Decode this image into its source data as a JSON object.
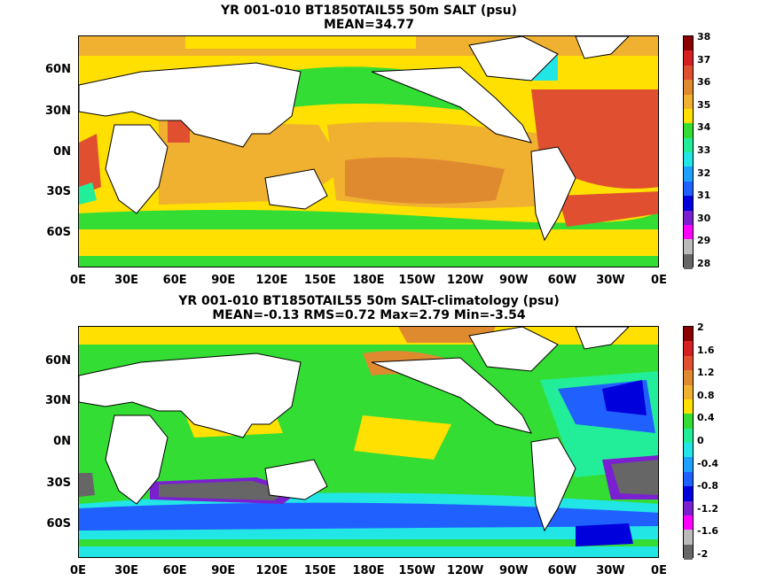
{
  "panels": [
    {
      "title_line1": "YR 001-010 BT1850TAIL55 50m SALT (psu)",
      "title_line2": "MEAN=34.77",
      "colorbar_labels": [
        "38",
        "37",
        "36",
        "35",
        "34",
        "33",
        "32",
        "31",
        "30",
        "29",
        "28"
      ],
      "colorbar_colors": [
        "#8b0000",
        "#d42020",
        "#e05030",
        "#e08a30",
        "#f0b030",
        "#ffe000",
        "#33dd33",
        "#22ee99",
        "#22e5e5",
        "#1ea0ff",
        "#2060ff",
        "#0000dd",
        "#7a20d0",
        "#ff00ff",
        "#bbbbbb",
        "#666666"
      ]
    },
    {
      "title_line1": "YR 001-010 BT1850TAIL55 50m SALT-climatology (psu)",
      "title_line2": "MEAN=-0.13   RMS=0.72   Max=2.79   Min=-3.54",
      "colorbar_labels": [
        "2",
        "1.6",
        "1.2",
        "0.8",
        "0.4",
        "0",
        "-0.4",
        "-0.8",
        "-1.2",
        "-1.6",
        "-2"
      ],
      "colorbar_colors": [
        "#8b0000",
        "#d42020",
        "#e05030",
        "#e08a30",
        "#f0b030",
        "#ffe000",
        "#33dd33",
        "#22ee99",
        "#22e5e5",
        "#1ea0ff",
        "#2060ff",
        "#0000dd",
        "#7a20d0",
        "#ff00ff",
        "#bbbbbb",
        "#666666"
      ]
    }
  ],
  "lat_labels": [
    "60N",
    "30N",
    "0N",
    "30S",
    "60S"
  ],
  "lon_labels": [
    "0E",
    "30E",
    "60E",
    "90E",
    "120E",
    "150E",
    "180E",
    "150W",
    "120W",
    "90W",
    "60W",
    "30W",
    "0E"
  ]
}
